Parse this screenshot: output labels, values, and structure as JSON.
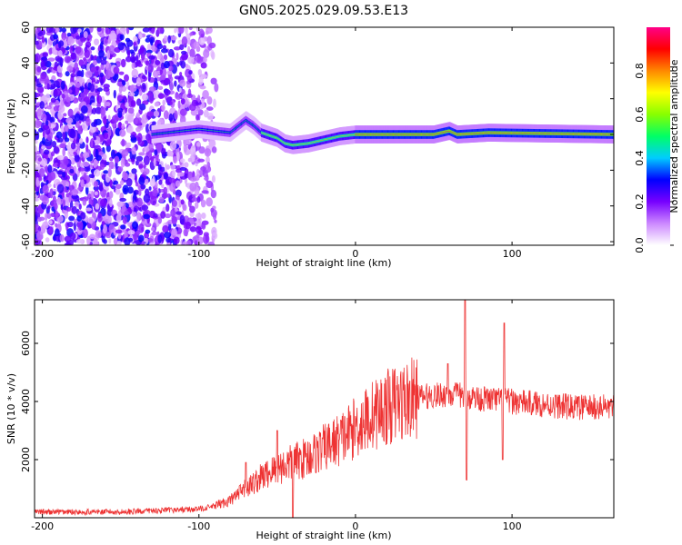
{
  "figure": {
    "title": "GN05.2025.029.09.53.E13"
  },
  "chart_data": [
    {
      "type": "heatmap",
      "name": "spectrogram",
      "xlabel": "Height of straight line (km)",
      "ylabel": "Frequency (Hz)",
      "xlim": [
        -205,
        165
      ],
      "ylim": [
        -62,
        60
      ],
      "xticks": [
        -200,
        -100,
        0,
        100
      ],
      "yticks": [
        -60,
        -40,
        -20,
        0,
        20,
        40,
        60
      ],
      "grid": false,
      "colorbar": {
        "label": "Normalized spectral amplitude",
        "range": [
          0,
          1
        ],
        "ticks": [
          0.0,
          0.2,
          0.4,
          0.6,
          0.8
        ],
        "colormap": [
          "#ffffff",
          "#cc88ff",
          "#7700ff",
          "#0000ff",
          "#00ccff",
          "#00ff66",
          "#88ff00",
          "#ffff00",
          "#ff8800",
          "#ff0000",
          "#ff0088"
        ]
      },
      "noise_region": {
        "x_range": [
          -205,
          -88
        ],
        "amplitude_range": [
          0.05,
          0.3
        ]
      },
      "ridge": [
        {
          "x": -130,
          "f": 0
        },
        {
          "x": -120,
          "f": 1
        },
        {
          "x": -110,
          "f": 2
        },
        {
          "x": -100,
          "f": 3
        },
        {
          "x": -90,
          "f": 2
        },
        {
          "x": -80,
          "f": 1
        },
        {
          "x": -70,
          "f": 8
        },
        {
          "x": -65,
          "f": 5
        },
        {
          "x": -60,
          "f": 1
        },
        {
          "x": -50,
          "f": -2
        },
        {
          "x": -45,
          "f": -5
        },
        {
          "x": -40,
          "f": -6
        },
        {
          "x": -30,
          "f": -5
        },
        {
          "x": -20,
          "f": -3
        },
        {
          "x": -10,
          "f": -1
        },
        {
          "x": 0,
          "f": 0
        },
        {
          "x": 50,
          "f": 0
        },
        {
          "x": 60,
          "f": 2
        },
        {
          "x": 65,
          "f": 0
        },
        {
          "x": 85,
          "f": 1
        },
        {
          "x": 165,
          "f": 0
        }
      ]
    },
    {
      "type": "line",
      "name": "snr",
      "xlabel": "Height of straight line (km)",
      "ylabel": "SNR (10 * v/v)",
      "xlim": [
        -205,
        165
      ],
      "ylim": [
        0,
        7500
      ],
      "xticks": [
        -200,
        -100,
        0,
        100
      ],
      "yticks": [
        2000,
        4000,
        6000
      ],
      "grid": false,
      "series": [
        {
          "color": "#ee3333",
          "x": [
            -205,
            -150,
            -100,
            -90,
            -80,
            -70,
            -60,
            -50,
            -40,
            -30,
            -20,
            -10,
            0,
            10,
            20,
            30,
            40,
            50,
            60,
            70,
            80,
            90,
            100,
            120,
            140,
            165
          ],
          "y": [
            200,
            200,
            300,
            400,
            600,
            1000,
            1400,
            1700,
            1900,
            2100,
            2400,
            2700,
            3100,
            3500,
            3800,
            4000,
            4150,
            4200,
            4250,
            4200,
            4100,
            4050,
            4000,
            3900,
            3800,
            3800
          ],
          "spikes": [
            {
              "x": 59,
              "y": 5300
            },
            {
              "x": 70,
              "y": 7500
            },
            {
              "x": 71,
              "y": 1300
            },
            {
              "x": 95,
              "y": 6700
            },
            {
              "x": 94,
              "y": 2000
            },
            {
              "x": -70,
              "y": 1900
            },
            {
              "x": -50,
              "y": 3000
            },
            {
              "x": -40,
              "y": 0
            }
          ]
        }
      ]
    }
  ]
}
